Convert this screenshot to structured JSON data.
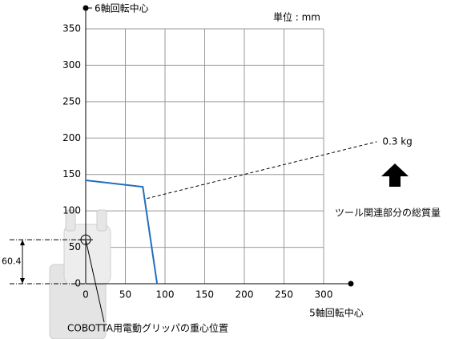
{
  "chart_data": {
    "type": "line",
    "title": "6軸回転中心",
    "unit_note": "単位 : mm",
    "x_label": "5軸回転中心",
    "side_note": "ツール関連部分の総質量",
    "xlim": [
      0,
      300
    ],
    "xticks": [
      0,
      50,
      100,
      150,
      200,
      250,
      300
    ],
    "ylim": [
      0,
      350
    ],
    "yticks": [
      0,
      50,
      100,
      150,
      200,
      250,
      300,
      350
    ],
    "grid": true,
    "series": [
      {
        "color": "#1f6fbf",
        "x": [
          0,
          72,
          90
        ],
        "values": [
          142,
          133,
          0
        ]
      },
      {
        "name": "0.3 kg",
        "color": "#000000",
        "dashed": true,
        "x": [
          77,
          367
        ],
        "values": [
          117,
          195
        ]
      }
    ],
    "cog": {
      "label": "COBOTTA用電動グリッパの重心位置",
      "x": 0,
      "y": 60.4
    }
  }
}
